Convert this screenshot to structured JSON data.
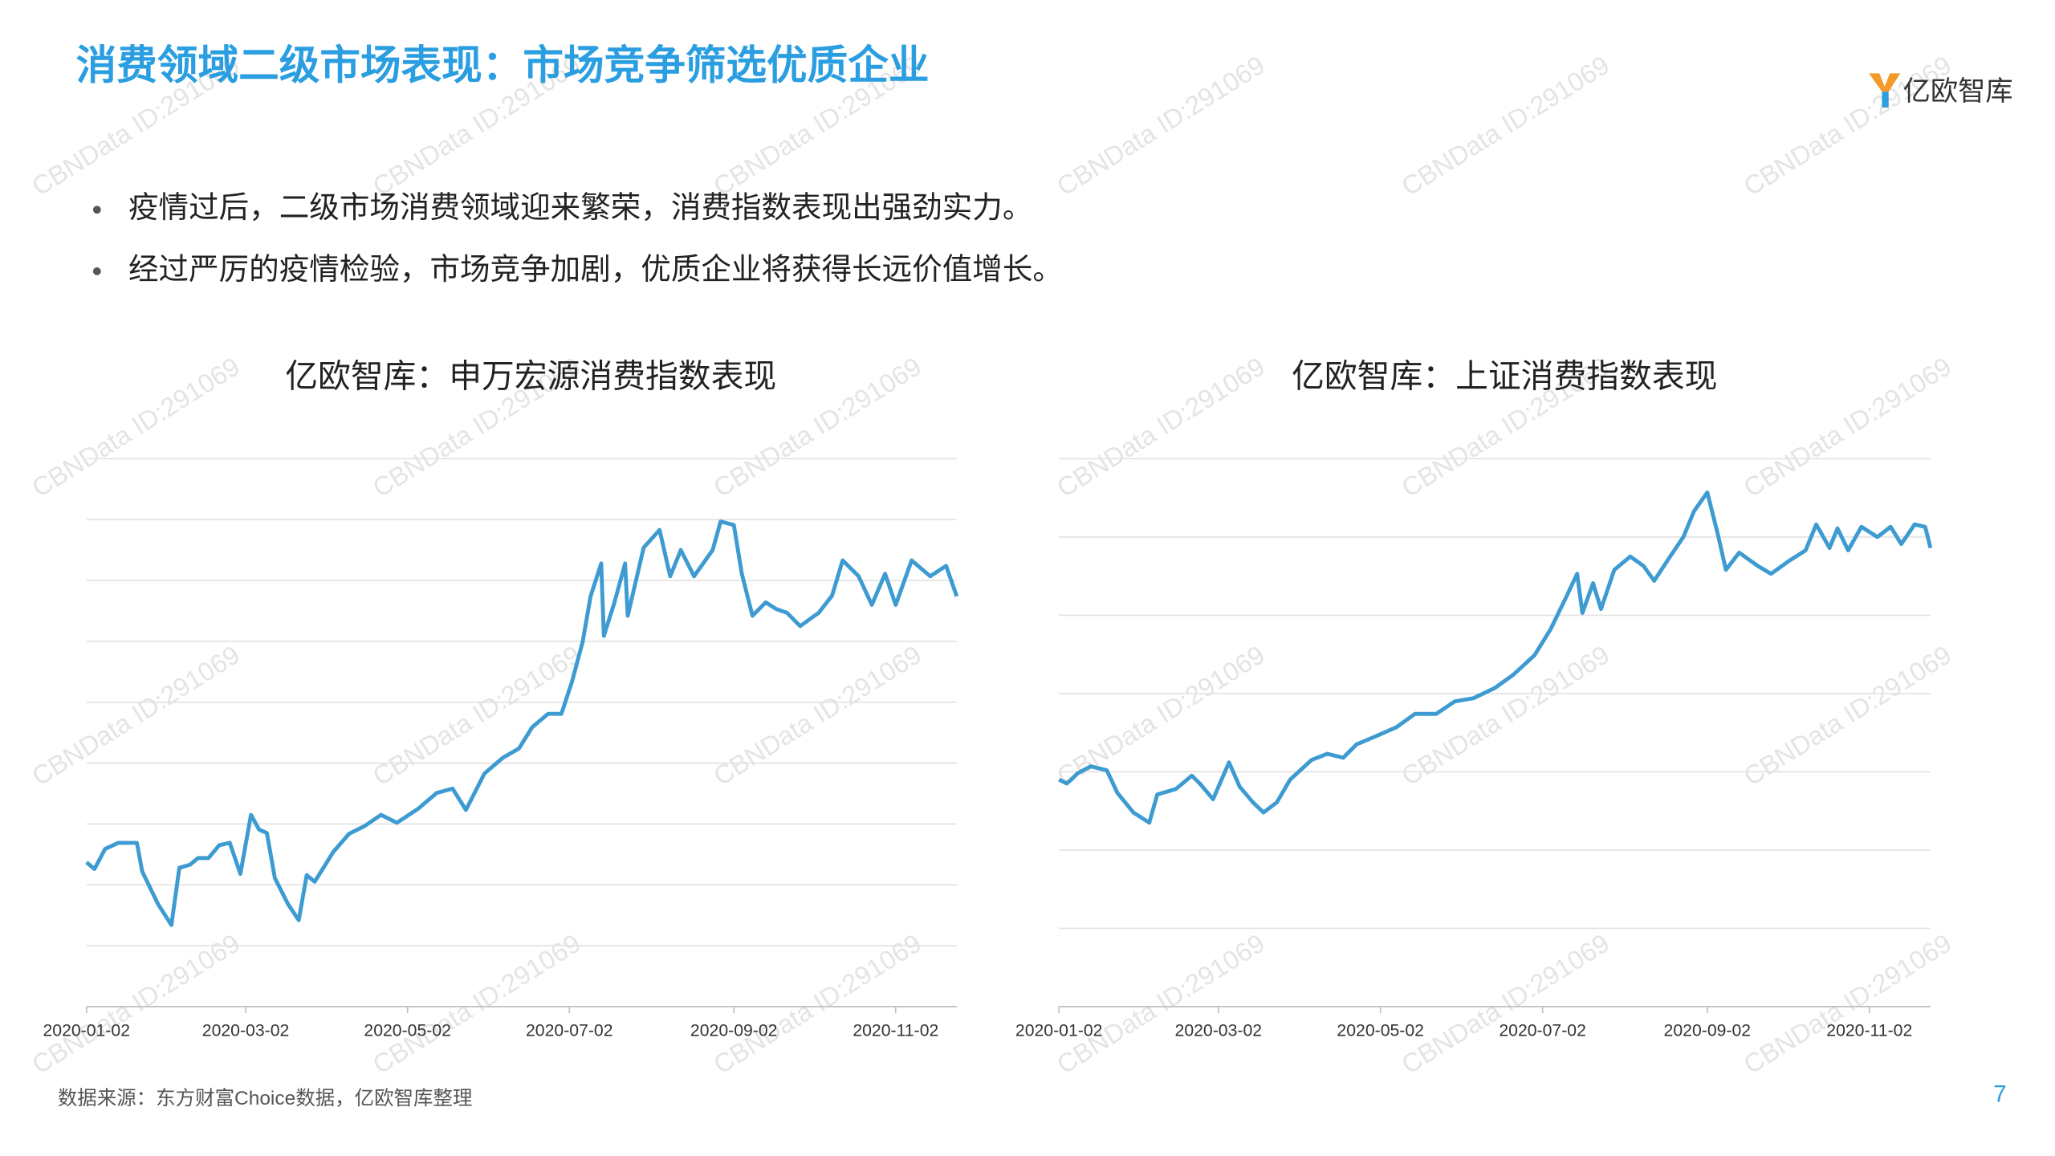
{
  "header": {
    "title": "消费领域二级市场表现：市场竞争筛选优质企业",
    "logo": "亿欧智库"
  },
  "bullets": [
    "疫情过后，二级市场消费领域迎来繁荣，消费指数表现出强劲实力。",
    "经过严厉的疫情检验，市场竞争加剧，优质企业将获得长远价值增长。"
  ],
  "watermark": "CBNData ID:291069",
  "chart_data": [
    {
      "type": "line",
      "title": "亿欧智库：申万宏源消费指数表现",
      "color": "#3d9bd1",
      "grid": true,
      "ytick_labels": false,
      "xlim": [
        "2020-01-02",
        "2020-11-25"
      ],
      "xticks": [
        "2020-01-02",
        "2020-03-02",
        "2020-05-02",
        "2020-07-02",
        "2020-09-02",
        "2020-11-02"
      ],
      "ylim": [
        0,
        9
      ],
      "yticks": [
        0,
        1,
        2,
        3,
        4,
        5,
        6,
        7,
        8,
        9
      ],
      "x": [
        "2020-01-02",
        "2020-01-05",
        "2020-01-09",
        "2020-01-14",
        "2020-01-21",
        "2020-01-23",
        "2020-01-29",
        "2020-02-03",
        "2020-02-06",
        "2020-02-10",
        "2020-02-13",
        "2020-02-17",
        "2020-02-21",
        "2020-02-25",
        "2020-02-29",
        "2020-03-04",
        "2020-03-07",
        "2020-03-10",
        "2020-03-13",
        "2020-03-18",
        "2020-03-22",
        "2020-03-25",
        "2020-03-28",
        "2020-04-04",
        "2020-04-10",
        "2020-04-16",
        "2020-04-22",
        "2020-04-28",
        "2020-05-06",
        "2020-05-13",
        "2020-05-19",
        "2020-05-24",
        "2020-05-31",
        "2020-06-07",
        "2020-06-13",
        "2020-06-18",
        "2020-06-24",
        "2020-06-29",
        "2020-07-03",
        "2020-07-07",
        "2020-07-10",
        "2020-07-14",
        "2020-07-15",
        "2020-07-19",
        "2020-07-23",
        "2020-07-24",
        "2020-07-30",
        "2020-08-05",
        "2020-08-09",
        "2020-08-13",
        "2020-08-18",
        "2020-08-25",
        "2020-08-28",
        "2020-09-02",
        "2020-09-05",
        "2020-09-09",
        "2020-09-14",
        "2020-09-18",
        "2020-09-22",
        "2020-09-27",
        "2020-10-04",
        "2020-10-09",
        "2020-10-13",
        "2020-10-19",
        "2020-10-24",
        "2020-10-29",
        "2020-11-02",
        "2020-11-08",
        "2020-11-15",
        "2020-11-21",
        "2020-11-25"
      ],
      "values": [
        2.37,
        2.26,
        2.59,
        2.69,
        2.69,
        2.22,
        1.68,
        1.34,
        2.28,
        2.33,
        2.44,
        2.44,
        2.65,
        2.69,
        2.18,
        3.15,
        2.91,
        2.85,
        2.11,
        1.68,
        1.42,
        2.16,
        2.05,
        2.54,
        2.84,
        2.97,
        3.15,
        3.02,
        3.25,
        3.51,
        3.58,
        3.23,
        3.83,
        4.09,
        4.24,
        4.59,
        4.81,
        4.81,
        5.34,
        5.99,
        6.74,
        7.28,
        6.09,
        6.64,
        7.28,
        6.42,
        7.54,
        7.83,
        7.07,
        7.5,
        7.07,
        7.5,
        7.97,
        7.91,
        7.11,
        6.42,
        6.64,
        6.53,
        6.47,
        6.25,
        6.47,
        6.75,
        7.33,
        7.07,
        6.6,
        7.11,
        6.6,
        7.33,
        7.07,
        7.24,
        6.74
      ]
    },
    {
      "type": "line",
      "title": "亿欧智库：上证消费指数表现",
      "color": "#3d9bd1",
      "grid": true,
      "ytick_labels": false,
      "xlim": [
        "2020-01-02",
        "2020-11-25"
      ],
      "xticks": [
        "2020-01-02",
        "2020-03-02",
        "2020-05-02",
        "2020-07-02",
        "2020-09-02",
        "2020-11-02"
      ],
      "ylim": [
        0,
        7
      ],
      "yticks": [
        0,
        1,
        2,
        3,
        4,
        5,
        6,
        7
      ],
      "x": [
        "2020-01-02",
        "2020-01-05",
        "2020-01-09",
        "2020-01-14",
        "2020-01-20",
        "2020-01-24",
        "2020-01-30",
        "2020-02-05",
        "2020-02-08",
        "2020-02-15",
        "2020-02-21",
        "2020-02-24",
        "2020-02-29",
        "2020-03-06",
        "2020-03-10",
        "2020-03-15",
        "2020-03-19",
        "2020-03-24",
        "2020-03-29",
        "2020-04-06",
        "2020-04-12",
        "2020-04-18",
        "2020-04-23",
        "2020-04-30",
        "2020-05-08",
        "2020-05-15",
        "2020-05-23",
        "2020-05-30",
        "2020-06-06",
        "2020-06-14",
        "2020-06-21",
        "2020-06-29",
        "2020-07-05",
        "2020-07-11",
        "2020-07-15",
        "2020-07-17",
        "2020-07-21",
        "2020-07-24",
        "2020-07-29",
        "2020-08-04",
        "2020-08-09",
        "2020-08-13",
        "2020-08-19",
        "2020-08-24",
        "2020-08-28",
        "2020-09-02",
        "2020-09-06",
        "2020-09-09",
        "2020-09-14",
        "2020-09-21",
        "2020-09-26",
        "2020-10-03",
        "2020-10-09",
        "2020-10-13",
        "2020-10-18",
        "2020-10-21",
        "2020-10-25",
        "2020-10-30",
        "2020-11-05",
        "2020-11-10",
        "2020-11-14",
        "2020-11-19",
        "2020-11-23",
        "2020-11-25"
      ],
      "values": [
        2.9,
        2.85,
        2.98,
        3.07,
        3.02,
        2.73,
        2.48,
        2.35,
        2.71,
        2.78,
        2.95,
        2.85,
        2.65,
        3.12,
        2.81,
        2.61,
        2.48,
        2.61,
        2.9,
        3.15,
        3.23,
        3.18,
        3.35,
        3.45,
        3.57,
        3.74,
        3.74,
        3.9,
        3.94,
        4.07,
        4.24,
        4.49,
        4.82,
        5.24,
        5.53,
        5.03,
        5.41,
        5.08,
        5.58,
        5.75,
        5.63,
        5.44,
        5.75,
        6.0,
        6.33,
        6.57,
        6.03,
        5.58,
        5.8,
        5.63,
        5.53,
        5.7,
        5.83,
        6.16,
        5.86,
        6.11,
        5.83,
        6.13,
        6.0,
        6.13,
        5.91,
        6.16,
        6.13,
        5.86
      ]
    }
  ],
  "footer": {
    "source": "数据来源：东方财富Choice数据，亿欧智库整理",
    "page": "7"
  }
}
